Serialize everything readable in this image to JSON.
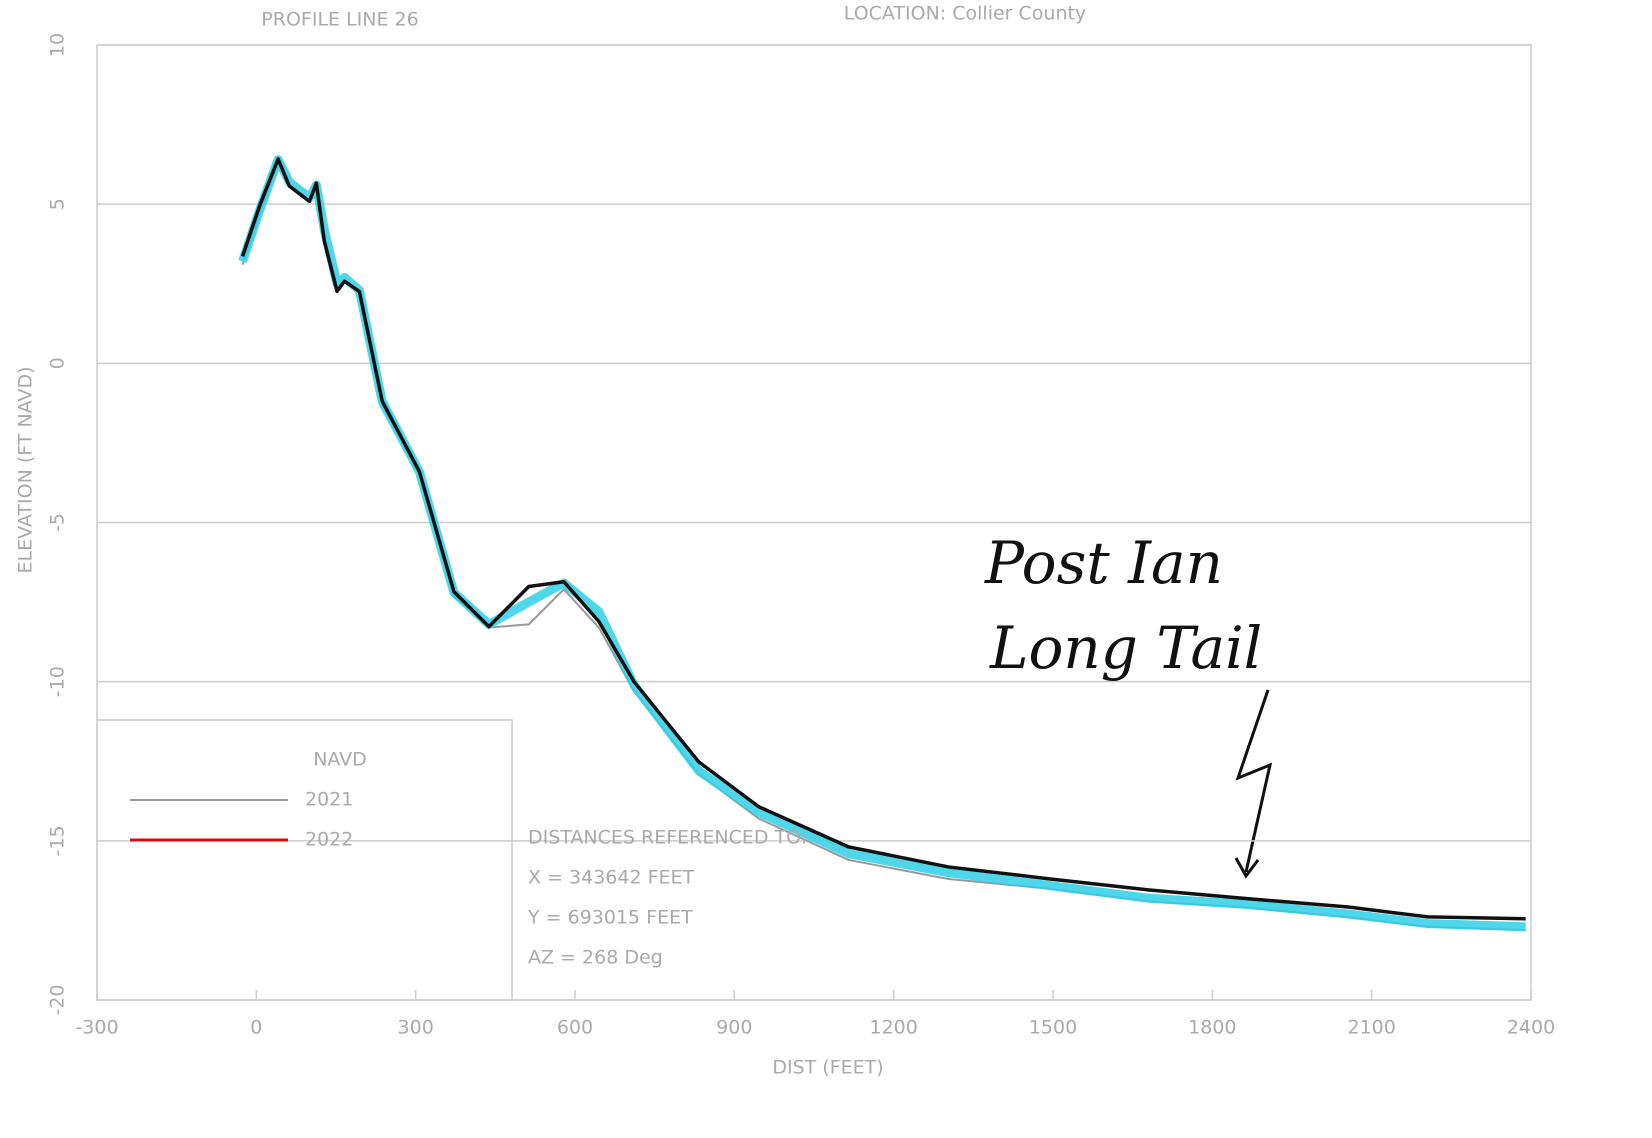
{
  "chart_data": {
    "type": "line",
    "title": "PROFILE LINE 26",
    "subtitle": "LOCATION: Collier County",
    "x_label": "DIST (FEET)",
    "y_label": "ELEVATION (FT NAVD)",
    "legend_title": "NAVD",
    "legend_color": "#d01010",
    "x": [
      -26,
      6,
      41,
      62,
      100,
      113,
      128,
      152,
      166,
      194,
      237,
      307,
      372,
      438,
      513,
      579,
      645,
      711,
      833,
      946,
      1115,
      1303,
      1491,
      1679,
      1868,
      2056,
      2206,
      2390
    ],
    "series": [
      {
        "name": "2021",
        "color": "#999999",
        "values": [
          3.1,
          4.7,
          6.3,
          5.6,
          5.1,
          5.5,
          4.0,
          2.4,
          2.6,
          2.2,
          -1.3,
          -3.5,
          -7.3,
          -8.3,
          -8.2,
          -7.1,
          -8.3,
          -10.3,
          -12.9,
          -14.3,
          -15.6,
          -16.2,
          -16.5,
          -16.9,
          -17.1,
          -17.4,
          -17.7,
          -17.8
        ]
      },
      {
        "name": "2022",
        "color": "#2fd0e6",
        "values": [
          3.2,
          4.8,
          6.4,
          5.7,
          5.2,
          5.6,
          4.2,
          2.5,
          2.7,
          2.3,
          -1.2,
          -3.4,
          -7.2,
          -8.2,
          -7.5,
          -6.9,
          -7.8,
          -10.1,
          -12.8,
          -14.1,
          -15.4,
          -16.0,
          -16.4,
          -16.8,
          -17.0,
          -17.3,
          -17.6,
          -17.7
        ]
      },
      {
        "color": "#111111",
        "values": [
          3.36,
          4.94,
          6.42,
          5.57,
          5.09,
          5.66,
          3.84,
          2.26,
          2.58,
          2.26,
          -1.19,
          -3.4,
          -7.17,
          -8.27,
          -7.01,
          -6.86,
          -8.11,
          -10.0,
          -12.52,
          -13.93,
          -15.19,
          -15.82,
          -16.19,
          -16.54,
          -16.82,
          -17.08,
          -17.39,
          -17.45
        ]
      }
    ],
    "xlim": [
      -300,
      2400
    ],
    "xticks": [
      -300,
      0,
      300,
      600,
      900,
      1200,
      1500,
      1800,
      2100,
      2400
    ],
    "ylim": [
      -20,
      10
    ],
    "yticks": [
      -20,
      -15,
      -10,
      -5,
      0,
      5,
      10
    ],
    "grid": true,
    "notes": [
      "DISTANCES REFERENCED TO:",
      "X = 343642 FEET",
      "Y = 693015 FEET",
      "AZ = 268 Deg"
    ],
    "annotation": [
      "Post Ian",
      "Long Tail"
    ]
  }
}
